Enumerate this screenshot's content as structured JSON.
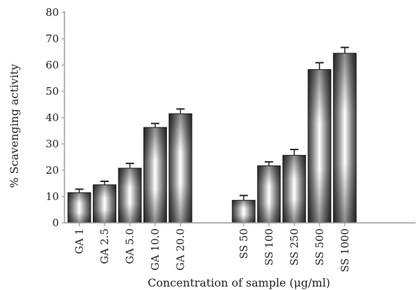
{
  "chart_data": {
    "type": "bar",
    "categories": [
      "GA 1",
      "GA 2.5",
      "GA 5.0",
      "GA 10.0",
      "GA 20.0",
      "SS 50",
      "SS 100",
      "SS 250",
      "SS 500",
      "SS 1000"
    ],
    "values": [
      11.5,
      14.5,
      20.8,
      36.3,
      41.5,
      8.6,
      21.7,
      25.7,
      58.3,
      64.5
    ],
    "errors": [
      1.3,
      1.3,
      1.8,
      1.5,
      1.8,
      1.8,
      1.5,
      2.2,
      2.6,
      2.2
    ],
    "groups": [
      [
        "GA 1",
        "GA 2.5",
        "GA 5.0",
        "GA 10.0",
        "GA 20.0"
      ],
      [
        "SS 50",
        "SS 100",
        "SS 250",
        "SS 500",
        "SS 1000"
      ]
    ],
    "title": "",
    "xlabel": "Concentration of sample (μg/ml)",
    "ylabel": "% Scavenging activity",
    "ylim": [
      0,
      80
    ],
    "yticks": [
      0,
      10,
      20,
      30,
      40,
      50,
      60,
      70,
      80
    ],
    "grid": false,
    "colors": {
      "bar_dark": "#3a3a3a",
      "bar_light": "#ffffff",
      "axis": "#9a9a9a",
      "text": "#222222"
    }
  }
}
